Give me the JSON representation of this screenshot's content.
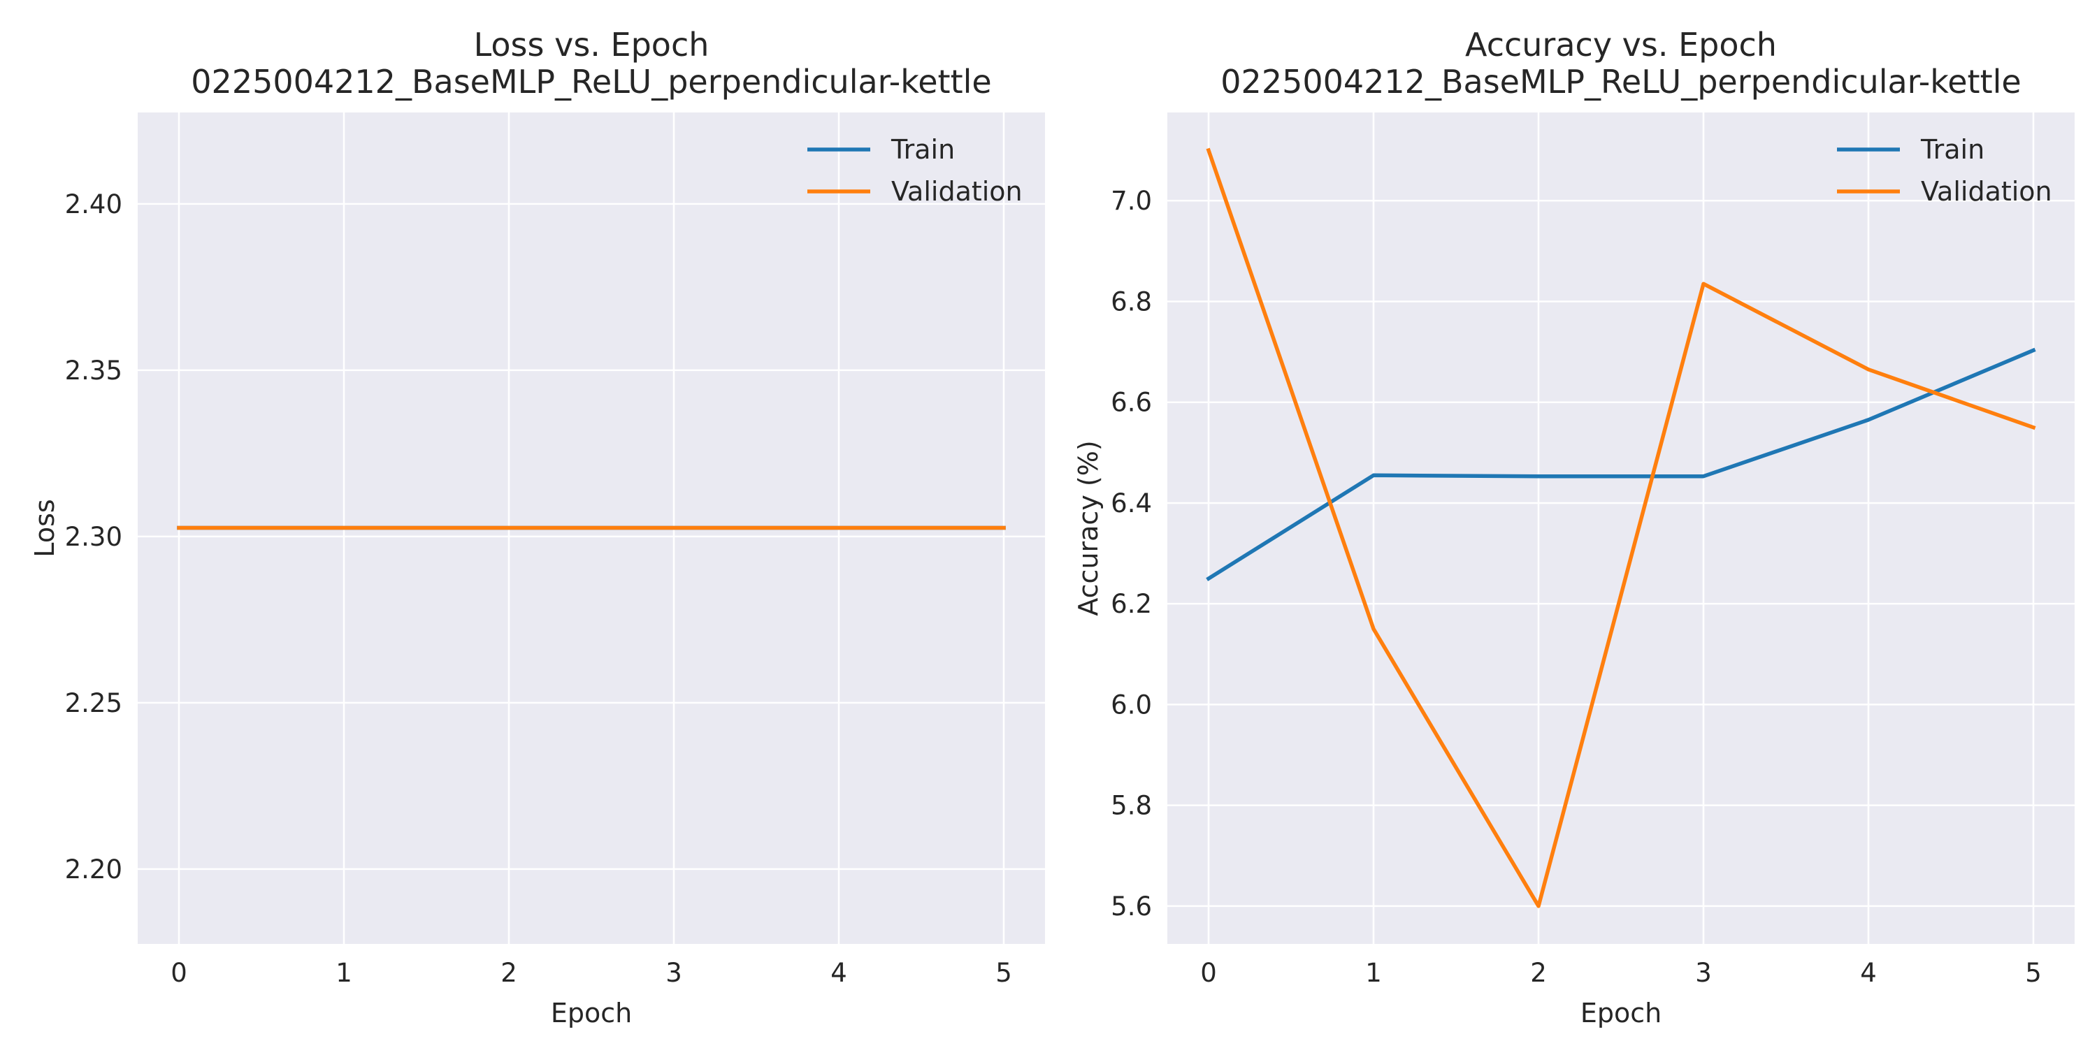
{
  "colors": {
    "train": "#1f77b4",
    "validation": "#ff7f0e",
    "axes_background": "#eaeaf2",
    "grid": "#ffffff"
  },
  "chart_data": [
    {
      "type": "line",
      "title": "Loss vs. Epoch",
      "subtitle": "0225004212_BaseMLP_ReLU_perpendicular-kettle",
      "xlabel": "Epoch",
      "ylabel": "Loss",
      "x": [
        0,
        1,
        2,
        3,
        4,
        5
      ],
      "xlim": [
        -0.25,
        5.25
      ],
      "ylim": [
        2.1775,
        2.4275
      ],
      "xticks": [
        0,
        1,
        2,
        3,
        4,
        5
      ],
      "yticks": [
        2.2,
        2.25,
        2.3,
        2.35,
        2.4
      ],
      "ytick_labels": [
        "2.20",
        "2.25",
        "2.30",
        "2.35",
        "2.40"
      ],
      "grid": true,
      "legend_position": "top-right",
      "series": [
        {
          "name": "Train",
          "color_key": "train",
          "values": [
            2.3026,
            2.3026,
            2.3026,
            2.3026,
            2.3026,
            2.3026
          ]
        },
        {
          "name": "Validation",
          "color_key": "validation",
          "values": [
            2.3026,
            2.3026,
            2.3026,
            2.3026,
            2.3026,
            2.3026
          ]
        }
      ]
    },
    {
      "type": "line",
      "title": "Accuracy vs. Epoch",
      "subtitle": "0225004212_BaseMLP_ReLU_perpendicular-kettle",
      "xlabel": "Epoch",
      "ylabel": "Accuracy (%)",
      "x": [
        0,
        1,
        2,
        3,
        4,
        5
      ],
      "xlim": [
        -0.25,
        5.25
      ],
      "ylim": [
        5.525,
        7.175
      ],
      "xticks": [
        0,
        1,
        2,
        3,
        4,
        5
      ],
      "yticks": [
        5.6,
        5.8,
        6.0,
        6.2,
        6.4,
        6.6,
        6.8,
        7.0
      ],
      "ytick_labels": [
        "5.6",
        "5.8",
        "6.0",
        "6.2",
        "6.4",
        "6.6",
        "6.8",
        "7.0"
      ],
      "grid": true,
      "legend_position": "top-right",
      "series": [
        {
          "name": "Train",
          "color_key": "train",
          "values": [
            6.25,
            6.455,
            6.453,
            6.453,
            6.565,
            6.703
          ]
        },
        {
          "name": "Validation",
          "color_key": "validation",
          "values": [
            7.1,
            6.15,
            5.6,
            6.835,
            6.665,
            6.55
          ]
        }
      ]
    }
  ]
}
